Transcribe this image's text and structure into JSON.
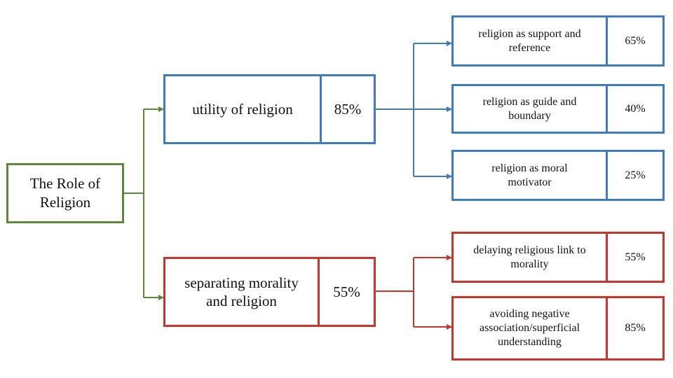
{
  "colors": {
    "root": "#5b8a3a",
    "utility": "#3f7cbf",
    "separating": "#c8352c"
  },
  "root": {
    "label": "The Role of Religion"
  },
  "branches": [
    {
      "label": "utility of religion",
      "value": "85%",
      "children": [
        {
          "label": "religion as support and reference",
          "value": "65%"
        },
        {
          "label": "religion as guide and boundary",
          "value": "40%"
        },
        {
          "label": "religion as moral motivator",
          "value": "25%"
        }
      ]
    },
    {
      "label": "separating morality and religion",
      "value": "55%",
      "children": [
        {
          "label": "delaying religious link to morality",
          "value": "55%"
        },
        {
          "label": "avoiding negative association/superficial understanding",
          "value": "85%"
        }
      ]
    }
  ]
}
